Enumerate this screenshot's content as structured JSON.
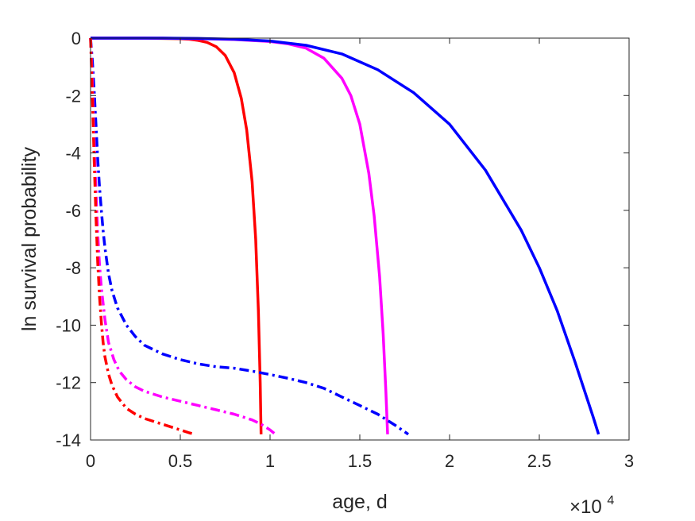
{
  "chart_data": {
    "type": "line",
    "xlabel": "age, d",
    "ylabel": "ln survival probability",
    "x_multiplier_label": "×10",
    "x_multiplier_exponent": "4",
    "x_multiplier": 10000,
    "xlim": [
      0,
      30000
    ],
    "ylim": [
      -14,
      0
    ],
    "xticks": [
      0,
      5000,
      10000,
      15000,
      20000,
      25000,
      30000
    ],
    "xtick_labels": [
      "0",
      "0.5",
      "1",
      "1.5",
      "2",
      "2.5",
      "3"
    ],
    "yticks": [
      0,
      -2,
      -4,
      -6,
      -8,
      -10,
      -12,
      -14
    ],
    "ytick_labels": [
      "0",
      "-2",
      "-4",
      "-6",
      "-8",
      "-10",
      "-12",
      "-14"
    ],
    "grid": false,
    "series": [
      {
        "color": "#ff0000",
        "style": "solid",
        "x": [
          0,
          1000,
          2000,
          3000,
          4000,
          5000,
          5500,
          6000,
          6500,
          7000,
          7500,
          8000,
          8400,
          8700,
          9000,
          9200,
          9350,
          9450,
          9500
        ],
        "y": [
          0,
          0,
          0,
          0,
          -0.01,
          -0.02,
          -0.04,
          -0.08,
          -0.15,
          -0.3,
          -0.6,
          -1.2,
          -2.1,
          -3.2,
          -5.0,
          -7.0,
          -9.5,
          -12.0,
          -13.8
        ]
      },
      {
        "color": "#ff00ff",
        "style": "solid",
        "x": [
          0,
          2000,
          4000,
          6000,
          8000,
          10000,
          11000,
          12000,
          13000,
          14000,
          14500,
          15000,
          15500,
          15800,
          16100,
          16300,
          16450,
          16550
        ],
        "y": [
          0,
          0,
          0,
          -0.02,
          -0.05,
          -0.12,
          -0.2,
          -0.35,
          -0.7,
          -1.4,
          -2.0,
          -3.0,
          -4.7,
          -6.2,
          -8.3,
          -10.3,
          -12.3,
          -13.8
        ]
      },
      {
        "color": "#0000ff",
        "style": "solid",
        "x": [
          0,
          2000,
          4000,
          6000,
          8000,
          10000,
          12000,
          14000,
          16000,
          18000,
          20000,
          22000,
          24000,
          25000,
          26000,
          27000,
          28000,
          28300
        ],
        "y": [
          0,
          0,
          0,
          -0.01,
          -0.04,
          -0.1,
          -0.25,
          -0.55,
          -1.1,
          -1.9,
          -3.0,
          -4.6,
          -6.7,
          -8.0,
          -9.5,
          -11.3,
          -13.2,
          -13.8
        ]
      },
      {
        "color": "#0000ff",
        "style": "dashdot",
        "x": [
          0,
          100,
          200,
          300,
          400,
          500,
          600,
          700,
          800,
          1000,
          1200,
          1500,
          2000,
          2500,
          3000,
          4000,
          5000,
          6000,
          7000,
          8000,
          9000,
          10000,
          11000,
          12000,
          13000,
          14000,
          15000,
          16000,
          17000,
          17700
        ],
        "y": [
          0,
          -0.8,
          -1.8,
          -3.0,
          -4.2,
          -5.2,
          -6.0,
          -6.7,
          -7.3,
          -8.2,
          -8.8,
          -9.4,
          -10.0,
          -10.4,
          -10.7,
          -11.0,
          -11.2,
          -11.35,
          -11.45,
          -11.5,
          -11.6,
          -11.72,
          -11.85,
          -12.0,
          -12.2,
          -12.5,
          -12.8,
          -13.1,
          -13.5,
          -13.8
        ]
      },
      {
        "color": "#ff00ff",
        "style": "dashdot",
        "x": [
          0,
          100,
          200,
          300,
          400,
          500,
          600,
          800,
          1000,
          1300,
          1600,
          2000,
          2500,
          3000,
          4000,
          5000,
          6000,
          7000,
          8000,
          9000,
          9500,
          10000,
          10300
        ],
        "y": [
          0,
          -1.5,
          -3.5,
          -5.3,
          -6.8,
          -7.9,
          -8.7,
          -9.8,
          -10.6,
          -11.2,
          -11.6,
          -11.9,
          -12.15,
          -12.3,
          -12.5,
          -12.65,
          -12.8,
          -12.95,
          -13.1,
          -13.3,
          -13.45,
          -13.65,
          -13.8
        ]
      },
      {
        "color": "#ff0000",
        "style": "dashdot",
        "x": [
          0,
          100,
          200,
          300,
          400,
          500,
          600,
          700,
          800,
          1000,
          1200,
          1500,
          2000,
          2500,
          3000,
          3500,
          4000,
          4500,
          5000,
          5500,
          5800
        ],
        "y": [
          0,
          -2.0,
          -4.2,
          -6.2,
          -7.8,
          -9.0,
          -9.9,
          -10.6,
          -11.1,
          -11.7,
          -12.1,
          -12.5,
          -12.9,
          -13.1,
          -13.25,
          -13.35,
          -13.45,
          -13.55,
          -13.65,
          -13.75,
          -13.8
        ]
      }
    ]
  }
}
